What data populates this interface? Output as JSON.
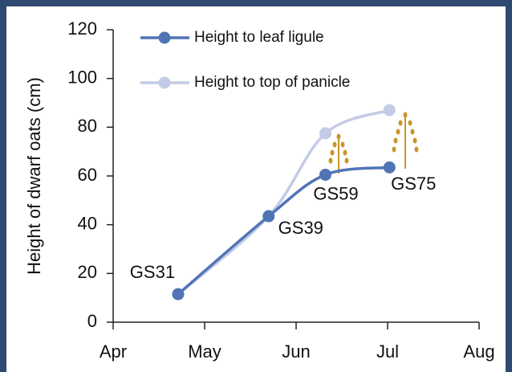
{
  "chart_data": {
    "type": "line",
    "ylabel": "Height of dwarf oats (cm)",
    "x": [
      0.71,
      1.7,
      2.32,
      3.02
    ],
    "xlim": [
      0,
      4
    ],
    "xticks": [
      {
        "value": 0,
        "label": "Apr"
      },
      {
        "value": 1,
        "label": "May"
      },
      {
        "value": 2,
        "label": "Jun"
      },
      {
        "value": 3,
        "label": "Jul"
      },
      {
        "value": 4,
        "label": "Aug"
      }
    ],
    "ylim": [
      0,
      120
    ],
    "yticks": [
      0,
      20,
      40,
      60,
      80,
      100,
      120
    ],
    "series": [
      {
        "name": "Height to leaf ligule",
        "color": "#5074b6",
        "values": [
          11.5,
          43.5,
          60.5,
          63.5
        ]
      },
      {
        "name": "Height to top of panicle",
        "color": "#c3cbe6",
        "values": [
          11.5,
          43.5,
          77.5,
          87
        ]
      }
    ],
    "annotations": [
      "GS31",
      "GS39",
      "GS59",
      "GS75"
    ],
    "legend": "top-left",
    "grid": false
  }
}
